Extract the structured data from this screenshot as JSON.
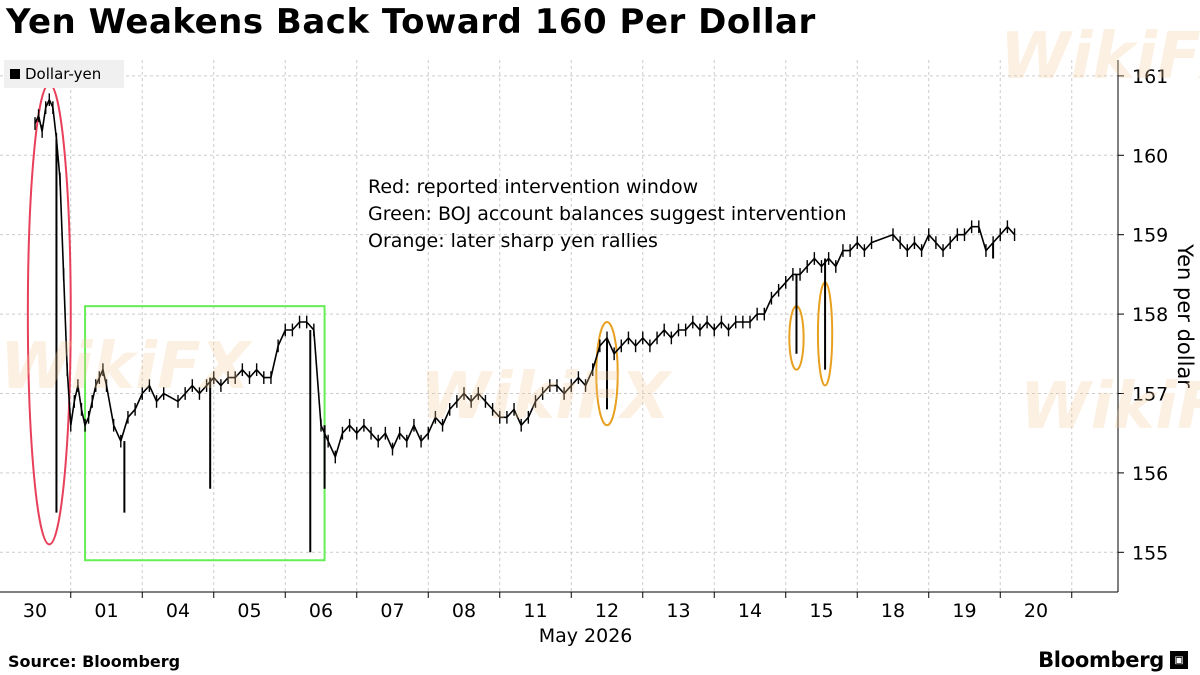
{
  "title": "Yen Weakens Back Toward 160 Per Dollar",
  "legend": {
    "label": "Dollar-yen"
  },
  "annotations": [
    "Red: reported intervention window",
    "Green: BOJ account balances suggest intervention",
    "Orange: later sharp yen rallies"
  ],
  "footer": {
    "source": "Source: Bloomberg",
    "brand": "Bloomberg"
  },
  "watermark": "WikiFX",
  "colors": {
    "red": "#e8405a",
    "green": "#66ee55",
    "orange": "#e8a020",
    "line": "#000000",
    "grid": "#cccccc"
  },
  "chart_data": {
    "type": "line",
    "title": "Yen Weakens Back Toward 160 Per Dollar",
    "ylabel": "Yen per dollar",
    "xlabel": "May 2026",
    "ylim": [
      154.5,
      161.2
    ],
    "yticks": [
      155,
      156,
      157,
      158,
      159,
      160,
      161
    ],
    "y_axis_position": "right",
    "grid": true,
    "legend_placement": "top-left",
    "x_categories": [
      "30",
      "01",
      "04",
      "05",
      "06",
      "07",
      "08",
      "11",
      "12",
      "13",
      "14",
      "15",
      "18",
      "19",
      "20"
    ],
    "x_center_label": "May 2026",
    "series": [
      {
        "name": "Dollar-yen",
        "points": [
          [
            0.0,
            160.4
          ],
          [
            0.05,
            160.5
          ],
          [
            0.1,
            160.3
          ],
          [
            0.15,
            160.6
          ],
          [
            0.2,
            160.7
          ],
          [
            0.25,
            160.6
          ],
          [
            0.3,
            160.2
          ],
          [
            0.35,
            159.7
          ],
          [
            0.4,
            158.5
          ],
          [
            0.45,
            157.3
          ],
          [
            0.5,
            156.6
          ],
          [
            0.55,
            156.9
          ],
          [
            0.6,
            157.1
          ],
          [
            0.65,
            156.8
          ],
          [
            0.7,
            156.6
          ],
          [
            0.75,
            156.7
          ],
          [
            0.8,
            156.9
          ],
          [
            0.85,
            157.1
          ],
          [
            0.9,
            157.2
          ],
          [
            0.95,
            157.3
          ],
          [
            1.0,
            157.1
          ],
          [
            1.1,
            156.6
          ],
          [
            1.2,
            156.4
          ],
          [
            1.3,
            156.7
          ],
          [
            1.4,
            156.8
          ],
          [
            1.5,
            157.0
          ],
          [
            1.6,
            157.1
          ],
          [
            1.7,
            156.9
          ],
          [
            1.8,
            157.0
          ],
          [
            2.0,
            156.9
          ],
          [
            2.1,
            157.0
          ],
          [
            2.2,
            157.1
          ],
          [
            2.3,
            157.0
          ],
          [
            2.4,
            157.1
          ],
          [
            2.5,
            157.2
          ],
          [
            2.6,
            157.1
          ],
          [
            2.7,
            157.2
          ],
          [
            2.8,
            157.2
          ],
          [
            2.9,
            157.3
          ],
          [
            3.0,
            157.2
          ],
          [
            3.1,
            157.3
          ],
          [
            3.2,
            157.2
          ],
          [
            3.3,
            157.2
          ],
          [
            3.4,
            157.6
          ],
          [
            3.5,
            157.8
          ],
          [
            3.6,
            157.8
          ],
          [
            3.7,
            157.9
          ],
          [
            3.8,
            157.9
          ],
          [
            3.9,
            157.8
          ],
          [
            4.0,
            156.6
          ],
          [
            4.1,
            156.4
          ],
          [
            4.2,
            156.2
          ],
          [
            4.3,
            156.5
          ],
          [
            4.4,
            156.6
          ],
          [
            4.5,
            156.5
          ],
          [
            4.6,
            156.6
          ],
          [
            4.7,
            156.5
          ],
          [
            4.8,
            156.4
          ],
          [
            4.9,
            156.5
          ],
          [
            5.0,
            156.3
          ],
          [
            5.1,
            156.5
          ],
          [
            5.2,
            156.4
          ],
          [
            5.3,
            156.6
          ],
          [
            5.4,
            156.4
          ],
          [
            5.5,
            156.5
          ],
          [
            5.6,
            156.7
          ],
          [
            5.7,
            156.6
          ],
          [
            5.8,
            156.8
          ],
          [
            5.9,
            156.9
          ],
          [
            6.0,
            157.0
          ],
          [
            6.1,
            156.9
          ],
          [
            6.2,
            157.0
          ],
          [
            6.3,
            156.9
          ],
          [
            6.4,
            156.8
          ],
          [
            6.5,
            156.7
          ],
          [
            6.6,
            156.7
          ],
          [
            6.7,
            156.8
          ],
          [
            6.8,
            156.6
          ],
          [
            6.9,
            156.7
          ],
          [
            7.0,
            156.9
          ],
          [
            7.1,
            157.0
          ],
          [
            7.2,
            157.1
          ],
          [
            7.3,
            157.1
          ],
          [
            7.4,
            157.0
          ],
          [
            7.5,
            157.1
          ],
          [
            7.6,
            157.2
          ],
          [
            7.7,
            157.1
          ],
          [
            7.8,
            157.3
          ],
          [
            7.9,
            157.6
          ],
          [
            8.0,
            157.7
          ],
          [
            8.1,
            157.5
          ],
          [
            8.2,
            157.6
          ],
          [
            8.3,
            157.7
          ],
          [
            8.4,
            157.6
          ],
          [
            8.5,
            157.7
          ],
          [
            8.6,
            157.6
          ],
          [
            8.7,
            157.7
          ],
          [
            8.8,
            157.8
          ],
          [
            8.9,
            157.7
          ],
          [
            9.0,
            157.8
          ],
          [
            9.1,
            157.8
          ],
          [
            9.2,
            157.9
          ],
          [
            9.3,
            157.8
          ],
          [
            9.4,
            157.9
          ],
          [
            9.5,
            157.8
          ],
          [
            9.6,
            157.9
          ],
          [
            9.7,
            157.8
          ],
          [
            9.8,
            157.9
          ],
          [
            9.9,
            157.9
          ],
          [
            10.0,
            157.9
          ],
          [
            10.1,
            158.0
          ],
          [
            10.2,
            158.0
          ],
          [
            10.3,
            158.2
          ],
          [
            10.4,
            158.3
          ],
          [
            10.5,
            158.4
          ],
          [
            10.6,
            158.5
          ],
          [
            10.7,
            158.5
          ],
          [
            10.8,
            158.6
          ],
          [
            10.9,
            158.7
          ],
          [
            11.0,
            158.6
          ],
          [
            11.1,
            158.7
          ],
          [
            11.2,
            158.6
          ],
          [
            11.3,
            158.8
          ],
          [
            11.4,
            158.8
          ],
          [
            11.5,
            158.9
          ],
          [
            11.6,
            158.8
          ],
          [
            11.7,
            158.9
          ],
          [
            12.0,
            159.0
          ],
          [
            12.1,
            158.9
          ],
          [
            12.2,
            158.8
          ],
          [
            12.3,
            158.9
          ],
          [
            12.4,
            158.8
          ],
          [
            12.5,
            159.0
          ],
          [
            12.6,
            158.9
          ],
          [
            12.7,
            158.8
          ],
          [
            12.8,
            158.9
          ],
          [
            12.9,
            159.0
          ],
          [
            13.0,
            159.0
          ],
          [
            13.1,
            159.1
          ],
          [
            13.2,
            159.1
          ],
          [
            13.3,
            158.8
          ],
          [
            13.4,
            158.9
          ],
          [
            13.5,
            159.0
          ],
          [
            13.6,
            159.1
          ],
          [
            13.7,
            159.0
          ]
        ]
      }
    ],
    "spikes": [
      {
        "x": 0.3,
        "low": 155.5
      },
      {
        "x": 1.25,
        "low": 155.5
      },
      {
        "x": 2.45,
        "low": 155.8
      },
      {
        "x": 3.85,
        "low": 155.0
      },
      {
        "x": 4.05,
        "low": 155.8
      },
      {
        "x": 8.0,
        "low": 156.8
      },
      {
        "x": 10.65,
        "low": 157.5
      },
      {
        "x": 11.05,
        "low": 157.3
      },
      {
        "x": 13.4,
        "low": 158.7
      }
    ],
    "highlights": [
      {
        "color": "red",
        "shape": "ellipse",
        "x_range": [
          -0.1,
          0.5
        ],
        "y_range": [
          155.1,
          160.9
        ]
      },
      {
        "color": "green",
        "shape": "rect",
        "x_range": [
          0.7,
          4.05
        ],
        "y_range": [
          154.9,
          158.1
        ]
      },
      {
        "color": "orange",
        "shape": "ellipse",
        "x_range": [
          7.85,
          8.15
        ],
        "y_range": [
          156.6,
          157.9
        ]
      },
      {
        "color": "orange",
        "shape": "ellipse",
        "x_range": [
          10.55,
          10.75
        ],
        "y_range": [
          157.3,
          158.1
        ]
      },
      {
        "color": "orange",
        "shape": "ellipse",
        "x_range": [
          10.95,
          11.15
        ],
        "y_range": [
          157.1,
          158.4
        ]
      }
    ]
  }
}
